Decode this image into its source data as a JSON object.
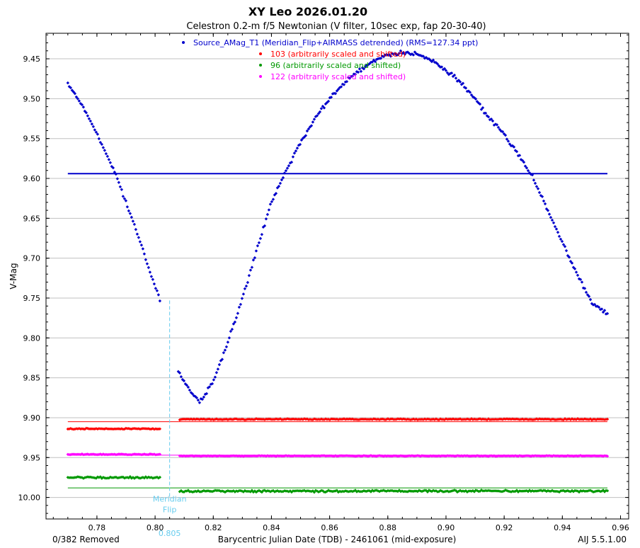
{
  "chart_data": {
    "type": "scatter",
    "title": "XY Leo 2026.01.20",
    "subtitle": "Celestron 0.2-m f/5 Newtonian (V filter, 10sec exp, fap 20-30-40)",
    "xlabel": "Barycentric Julian Date (TDB) - 2461061 (mid-exposure)",
    "ylabel": "V-Mag",
    "xlim": [
      0.7625,
      0.9628
    ],
    "ylim": [
      10.027,
      9.418
    ],
    "y_inverted": true,
    "grid": "horizontal",
    "xticks": [
      "0.78",
      "0.80",
      "0.82",
      "0.84",
      "0.86",
      "0.88",
      "0.90",
      "0.92",
      "0.94",
      "0.96"
    ],
    "yticks": [
      "9.45",
      "9.50",
      "9.55",
      "9.60",
      "9.65",
      "9.70",
      "9.75",
      "9.80",
      "9.85",
      "9.90",
      "9.95",
      "10.00"
    ],
    "legend_position": "top-center",
    "meridian_flip": {
      "x": 0.805,
      "label_line1": "Meridian",
      "label_line2": "Flip",
      "value_label": "0.805",
      "color": "#66ccee"
    },
    "footer_left": "0/382 Removed",
    "footer_right": "AIJ 5.5.1.00",
    "series": [
      {
        "name": "Source_AMag_T1 (Meridian_Flip+AIRMASS detrended) (RMS=127.34 ppt)",
        "color": "#0000cc",
        "mean": 9.594,
        "x_range": [
          0.77,
          0.9555
        ],
        "curve": {
          "x": [
            0.77,
            0.776,
            0.78,
            0.786,
            0.79,
            0.794,
            0.798,
            0.801,
            0.8078,
            0.81,
            0.813,
            0.8155,
            0.82,
            0.825,
            0.83,
            0.835,
            0.84,
            0.845,
            0.85,
            0.855,
            0.86,
            0.865,
            0.87,
            0.875,
            0.88,
            0.884,
            0.888,
            0.89,
            0.895,
            0.9,
            0.905,
            0.91,
            0.915,
            0.92,
            0.925,
            0.93,
            0.935,
            0.94,
            0.945,
            0.95,
            0.9555
          ],
          "y": [
            9.48,
            9.515,
            9.545,
            9.59,
            9.63,
            9.67,
            9.715,
            9.745,
            9.84,
            9.855,
            9.87,
            9.88,
            9.855,
            9.805,
            9.75,
            9.69,
            9.63,
            9.59,
            9.555,
            9.525,
            9.5,
            9.48,
            9.465,
            9.452,
            9.445,
            9.443,
            9.442,
            9.445,
            9.452,
            9.465,
            9.48,
            9.5,
            9.525,
            9.545,
            9.57,
            9.6,
            9.64,
            9.68,
            9.72,
            9.755,
            9.77
          ]
        },
        "gap": [
          0.8021,
          0.8078
        ]
      },
      {
        "name": "103 (arbitrarily scaled and shifted)",
        "color": "#ff0000",
        "mean": 9.905,
        "segments": [
          {
            "x_range": [
              0.77,
              0.802
            ],
            "y": 9.914
          },
          {
            "x_range": [
              0.808,
              0.9555
            ],
            "y": 9.902
          }
        ]
      },
      {
        "name": " 96 (arbitrarily scaled and shifted)",
        "color": "#009900",
        "mean": 9.988,
        "segments": [
          {
            "x_range": [
              0.77,
              0.802
            ],
            "y": 9.975
          },
          {
            "x_range": [
              0.808,
              0.9555
            ],
            "y": 9.992
          }
        ]
      },
      {
        "name": "122 (arbitrarily scaled and shifted)",
        "color": "#ff00ff",
        "mean": 9.947,
        "segments": [
          {
            "x_range": [
              0.77,
              0.802
            ],
            "y": 9.946
          },
          {
            "x_range": [
              0.808,
              0.9555
            ],
            "y": 9.948
          }
        ]
      }
    ]
  }
}
